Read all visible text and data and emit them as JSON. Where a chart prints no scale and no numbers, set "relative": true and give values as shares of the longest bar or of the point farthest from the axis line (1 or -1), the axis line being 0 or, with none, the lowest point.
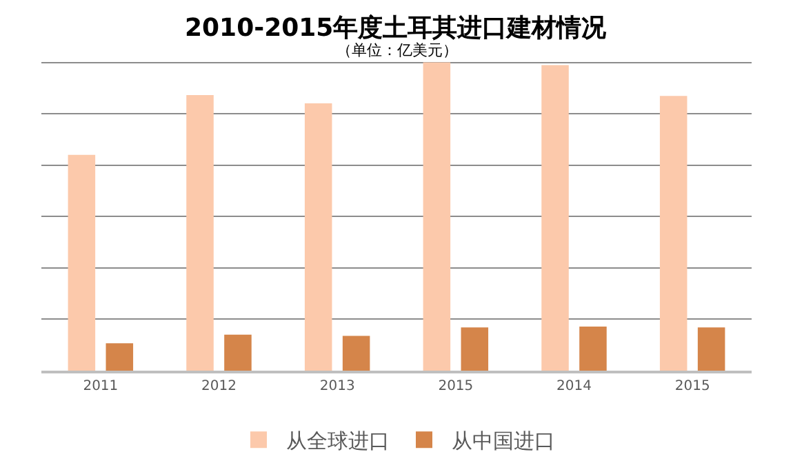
{
  "chart_data": {
    "type": "bar",
    "title": "2010-2015年度土耳其进口建材情况",
    "subtitle": "（单位：亿美元）",
    "categories": [
      "2011",
      "2012",
      "2013",
      "2015",
      "2014",
      "2015"
    ],
    "relative": true,
    "grid": "y",
    "legend": "bottom",
    "series": [
      {
        "name": "从全球进口",
        "color": "#fcc9ab",
        "values": [
          0.7,
          0.894,
          0.867,
          1,
          0.991,
          0.891
        ]
      },
      {
        "name": "从中国进口",
        "color": "#d5854a",
        "values": [
          0.089,
          0.117,
          0.113,
          0.14,
          0.143,
          0.14
        ]
      }
    ]
  }
}
